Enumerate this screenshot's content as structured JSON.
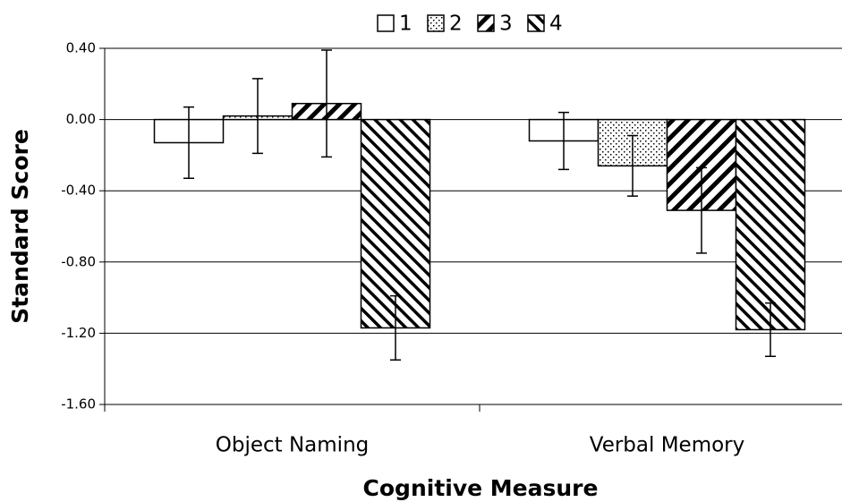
{
  "chart_data": {
    "type": "bar",
    "y_label": "Standard Score",
    "x_label": "Cognitive Measure",
    "categories": [
      "Object Naming",
      "Verbal Memory"
    ],
    "series": [
      {
        "name": "1",
        "pattern": "solid",
        "color": "#ffffff",
        "values": [
          -0.13,
          -0.12
        ],
        "errors": [
          0.2,
          0.16
        ]
      },
      {
        "name": "2",
        "pattern": "dots",
        "color": "#ffffff",
        "values": [
          0.02,
          -0.26
        ],
        "errors": [
          0.21,
          0.17
        ]
      },
      {
        "name": "3",
        "pattern": "forward-hatch",
        "color": "#ffffff",
        "values": [
          0.09,
          -0.51
        ],
        "errors": [
          0.3,
          0.24
        ]
      },
      {
        "name": "4",
        "pattern": "back-hatch",
        "color": "#ffffff",
        "values": [
          -1.17,
          -1.18
        ],
        "errors": [
          0.18,
          0.15
        ]
      }
    ],
    "ylim": [
      -1.6,
      0.4
    ],
    "yticks": [
      {
        "value": -1.6,
        "label": "-1.60"
      },
      {
        "value": -1.2,
        "label": "-1.20"
      },
      {
        "value": -0.8,
        "label": "-0.80"
      },
      {
        "value": -0.4,
        "label": "-0.40"
      },
      {
        "value": 0,
        "label": "0.00"
      },
      {
        "value": 0.4,
        "label": "0.40"
      }
    ],
    "grid": true,
    "legend": "top"
  }
}
